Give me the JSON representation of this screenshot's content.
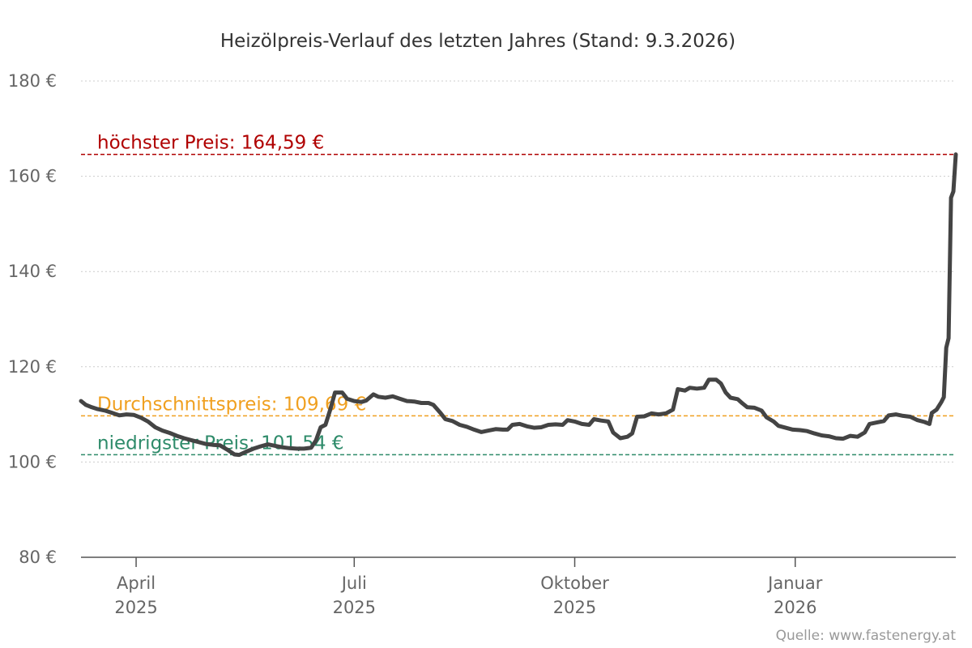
{
  "chart_data": {
    "type": "line",
    "title": "Heizölpreis-Verlauf des letzten Jahres (Stand: 9.3.2026)",
    "source": "Quelle: www.fastenergy.at",
    "y_unit": "€",
    "ylim": [
      80,
      180
    ],
    "yticks": [
      {
        "value": 80,
        "label": "80 €"
      },
      {
        "value": 100,
        "label": "100 €"
      },
      {
        "value": 120,
        "label": "120 €"
      },
      {
        "value": 140,
        "label": "140 €"
      },
      {
        "value": 160,
        "label": "160 €"
      },
      {
        "value": 180,
        "label": "180 €"
      }
    ],
    "x_range": [
      "2025-03-09",
      "2026-03-09"
    ],
    "xticks": [
      {
        "date": "2025-04-01",
        "month": "April",
        "year": "2025"
      },
      {
        "date": "2025-07-01",
        "month": "Juli",
        "year": "2025"
      },
      {
        "date": "2025-10-01",
        "month": "Oktober",
        "year": "2025"
      },
      {
        "date": "2026-01-01",
        "month": "Januar",
        "year": "2026"
      }
    ],
    "grid": true,
    "reference_lines": [
      {
        "name": "max",
        "label": "höchster Preis: 164,59 €",
        "value": 164.59,
        "color": "#b00000"
      },
      {
        "name": "avg",
        "label": "Durchschnittspreis: 109,69 €",
        "value": 109.69,
        "color": "#f0a020"
      },
      {
        "name": "min",
        "label": "niedrigster Preis: 101,54 €",
        "value": 101.54,
        "color": "#2e8b6a"
      }
    ],
    "series": [
      {
        "color": "#444444",
        "points": [
          [
            "2025-03-09",
            112.8
          ],
          [
            "2025-03-11",
            112.0
          ],
          [
            "2025-03-13",
            111.6
          ],
          [
            "2025-03-16",
            111.1
          ],
          [
            "2025-03-19",
            110.8
          ],
          [
            "2025-03-22",
            110.3
          ],
          [
            "2025-03-25",
            109.8
          ],
          [
            "2025-03-28",
            110.0
          ],
          [
            "2025-03-31",
            109.9
          ],
          [
            "2025-04-03",
            109.3
          ],
          [
            "2025-04-06",
            108.5
          ],
          [
            "2025-04-09",
            107.3
          ],
          [
            "2025-04-12",
            106.6
          ],
          [
            "2025-04-15",
            106.1
          ],
          [
            "2025-04-18",
            105.5
          ],
          [
            "2025-04-21",
            105.0
          ],
          [
            "2025-04-24",
            104.6
          ],
          [
            "2025-04-27",
            104.2
          ],
          [
            "2025-04-30",
            103.8
          ],
          [
            "2025-05-03",
            103.6
          ],
          [
            "2025-05-06",
            103.5
          ],
          [
            "2025-05-09",
            102.6
          ],
          [
            "2025-05-12",
            101.6
          ],
          [
            "2025-05-14",
            101.5
          ],
          [
            "2025-05-17",
            102.2
          ],
          [
            "2025-05-20",
            102.8
          ],
          [
            "2025-05-23",
            103.3
          ],
          [
            "2025-05-26",
            103.7
          ],
          [
            "2025-05-29",
            103.4
          ],
          [
            "2025-06-01",
            103.1
          ],
          [
            "2025-06-04",
            102.9
          ],
          [
            "2025-06-07",
            102.8
          ],
          [
            "2025-06-10",
            102.8
          ],
          [
            "2025-06-13",
            103.0
          ],
          [
            "2025-06-15",
            104.5
          ],
          [
            "2025-06-17",
            107.3
          ],
          [
            "2025-06-19",
            107.8
          ],
          [
            "2025-06-21",
            111.0
          ],
          [
            "2025-06-23",
            114.6
          ],
          [
            "2025-06-26",
            114.6
          ],
          [
            "2025-06-28",
            113.3
          ],
          [
            "2025-07-01",
            112.8
          ],
          [
            "2025-07-04",
            112.6
          ],
          [
            "2025-07-06",
            112.9
          ],
          [
            "2025-07-09",
            114.2
          ],
          [
            "2025-07-11",
            113.7
          ],
          [
            "2025-07-14",
            113.5
          ],
          [
            "2025-07-17",
            113.8
          ],
          [
            "2025-07-20",
            113.3
          ],
          [
            "2025-07-23",
            112.8
          ],
          [
            "2025-07-26",
            112.7
          ],
          [
            "2025-07-29",
            112.4
          ],
          [
            "2025-08-01",
            112.4
          ],
          [
            "2025-08-03",
            112.0
          ],
          [
            "2025-08-06",
            110.3
          ],
          [
            "2025-08-08",
            109.0
          ],
          [
            "2025-08-11",
            108.6
          ],
          [
            "2025-08-14",
            107.8
          ],
          [
            "2025-08-17",
            107.4
          ],
          [
            "2025-08-20",
            106.8
          ],
          [
            "2025-08-23",
            106.3
          ],
          [
            "2025-08-26",
            106.6
          ],
          [
            "2025-08-29",
            106.9
          ],
          [
            "2025-09-01",
            106.8
          ],
          [
            "2025-09-03",
            106.8
          ],
          [
            "2025-09-05",
            107.8
          ],
          [
            "2025-09-08",
            108.0
          ],
          [
            "2025-09-11",
            107.5
          ],
          [
            "2025-09-14",
            107.2
          ],
          [
            "2025-09-17",
            107.3
          ],
          [
            "2025-09-20",
            107.8
          ],
          [
            "2025-09-23",
            107.9
          ],
          [
            "2025-09-26",
            107.8
          ],
          [
            "2025-09-28",
            108.8
          ],
          [
            "2025-10-01",
            108.5
          ],
          [
            "2025-10-04",
            108.0
          ],
          [
            "2025-10-07",
            107.8
          ],
          [
            "2025-10-09",
            109.0
          ],
          [
            "2025-10-12",
            108.7
          ],
          [
            "2025-10-15",
            108.5
          ],
          [
            "2025-10-17",
            106.2
          ],
          [
            "2025-10-20",
            105.0
          ],
          [
            "2025-10-23",
            105.3
          ],
          [
            "2025-10-25",
            106.0
          ],
          [
            "2025-10-27",
            109.5
          ],
          [
            "2025-10-30",
            109.6
          ],
          [
            "2025-11-02",
            110.2
          ],
          [
            "2025-11-05",
            110.0
          ],
          [
            "2025-11-08",
            110.2
          ],
          [
            "2025-11-11",
            111.0
          ],
          [
            "2025-11-13",
            115.3
          ],
          [
            "2025-11-16",
            115.0
          ],
          [
            "2025-11-18",
            115.6
          ],
          [
            "2025-11-21",
            115.4
          ],
          [
            "2025-11-24",
            115.6
          ],
          [
            "2025-11-26",
            117.3
          ],
          [
            "2025-11-29",
            117.3
          ],
          [
            "2025-12-01",
            116.5
          ],
          [
            "2025-12-03",
            114.6
          ],
          [
            "2025-12-05",
            113.5
          ],
          [
            "2025-12-08",
            113.2
          ],
          [
            "2025-12-10",
            112.3
          ],
          [
            "2025-12-12",
            111.5
          ],
          [
            "2025-12-15",
            111.4
          ],
          [
            "2025-12-18",
            110.8
          ],
          [
            "2025-12-20",
            109.4
          ],
          [
            "2025-12-23",
            108.5
          ],
          [
            "2025-12-25",
            107.6
          ],
          [
            "2025-12-28",
            107.2
          ],
          [
            "2025-12-31",
            106.8
          ],
          [
            "2026-01-03",
            106.7
          ],
          [
            "2026-01-06",
            106.5
          ],
          [
            "2026-01-09",
            106.0
          ],
          [
            "2026-01-12",
            105.6
          ],
          [
            "2026-01-15",
            105.4
          ],
          [
            "2026-01-18",
            105.0
          ],
          [
            "2026-01-21",
            104.9
          ],
          [
            "2026-01-24",
            105.5
          ],
          [
            "2026-01-27",
            105.3
          ],
          [
            "2026-01-30",
            106.2
          ],
          [
            "2026-02-01",
            108.0
          ],
          [
            "2026-02-04",
            108.3
          ],
          [
            "2026-02-07",
            108.6
          ],
          [
            "2026-02-09",
            109.8
          ],
          [
            "2026-02-12",
            110.0
          ],
          [
            "2026-02-15",
            109.7
          ],
          [
            "2026-02-18",
            109.5
          ],
          [
            "2026-02-21",
            108.8
          ],
          [
            "2026-02-24",
            108.4
          ],
          [
            "2026-02-26",
            108.0
          ],
          [
            "2026-02-27",
            110.3
          ],
          [
            "2026-03-01",
            111.0
          ],
          [
            "2026-03-03",
            112.6
          ],
          [
            "2026-03-04",
            113.6
          ],
          [
            "2026-03-05",
            124.0
          ],
          [
            "2026-03-06",
            126.0
          ],
          [
            "2026-03-07",
            155.5
          ],
          [
            "2026-03-08",
            156.8
          ],
          [
            "2026-03-09",
            164.6
          ]
        ]
      }
    ]
  }
}
